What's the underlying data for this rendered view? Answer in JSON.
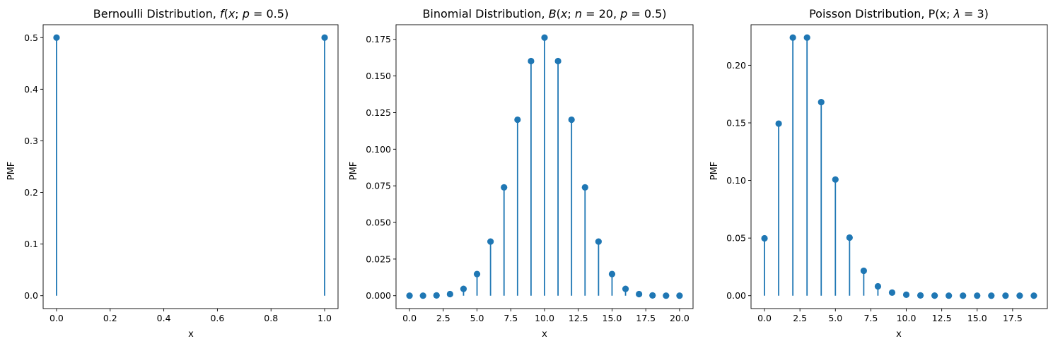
{
  "chart_data": [
    {
      "type": "stem",
      "title": "Bernoulli Distribution, f(x; p = 0.5)",
      "xlabel": "x",
      "ylabel": "PMF",
      "x": [
        0,
        1
      ],
      "values": [
        0.5,
        0.5
      ],
      "xlim": [
        -0.05,
        1.05
      ],
      "ylim": [
        -0.025,
        0.525
      ],
      "xticks": [
        0.0,
        0.2,
        0.4,
        0.6,
        0.8,
        1.0
      ],
      "xtick_labels": [
        "0.0",
        "0.2",
        "0.4",
        "0.6",
        "0.8",
        "1.0"
      ],
      "yticks": [
        0.0,
        0.1,
        0.2,
        0.3,
        0.4,
        0.5
      ],
      "ytick_labels": [
        "0.0",
        "0.1",
        "0.2",
        "0.3",
        "0.4",
        "0.5"
      ],
      "color": "#1f77b4",
      "grid": false
    },
    {
      "type": "stem",
      "title": "Binomial Distribution, B(x; n = 20, p = 0.5)",
      "xlabel": "x",
      "ylabel": "PMF",
      "x": [
        0,
        1,
        2,
        3,
        4,
        5,
        6,
        7,
        8,
        9,
        10,
        11,
        12,
        13,
        14,
        15,
        16,
        17,
        18,
        19,
        20
      ],
      "values": [
        1e-06,
        1.9e-05,
        0.000181,
        0.001087,
        0.004621,
        0.014786,
        0.036964,
        0.073929,
        0.120134,
        0.160179,
        0.176197,
        0.160179,
        0.120134,
        0.073929,
        0.036964,
        0.014786,
        0.004621,
        0.001087,
        0.000181,
        1.9e-05,
        1e-06
      ],
      "xlim": [
        -1.0,
        21.0
      ],
      "ylim": [
        -0.0088,
        0.185
      ],
      "xticks": [
        0.0,
        2.5,
        5.0,
        7.5,
        10.0,
        12.5,
        15.0,
        17.5,
        20.0
      ],
      "xtick_labels": [
        "0.0",
        "2.5",
        "5.0",
        "7.5",
        "10.0",
        "12.5",
        "15.0",
        "17.5",
        "20.0"
      ],
      "yticks": [
        0.0,
        0.025,
        0.05,
        0.075,
        0.1,
        0.125,
        0.15,
        0.175
      ],
      "ytick_labels": [
        "0.000",
        "0.025",
        "0.050",
        "0.075",
        "0.100",
        "0.125",
        "0.150",
        "0.175"
      ],
      "color": "#1f77b4",
      "grid": false
    },
    {
      "type": "stem",
      "title": "Poisson Distribution, P(x; λ = 3)",
      "xlabel": "x",
      "ylabel": "PMF",
      "x": [
        0,
        1,
        2,
        3,
        4,
        5,
        6,
        7,
        8,
        9,
        10,
        11,
        12,
        13,
        14,
        15,
        16,
        17,
        18,
        19
      ],
      "values": [
        0.049787,
        0.149361,
        0.224042,
        0.224042,
        0.168031,
        0.100819,
        0.050409,
        0.021604,
        0.008102,
        0.002701,
        0.00081,
        0.000221,
        5.5e-05,
        1.3e-05,
        3e-06,
        1e-06,
        0.0,
        0.0,
        0.0,
        0.0
      ],
      "xlim": [
        -0.95,
        19.95
      ],
      "ylim": [
        -0.0112,
        0.2352
      ],
      "xticks": [
        0.0,
        2.5,
        5.0,
        7.5,
        10.0,
        12.5,
        15.0,
        17.5
      ],
      "xtick_labels": [
        "0.0",
        "2.5",
        "5.0",
        "7.5",
        "10.0",
        "12.5",
        "15.0",
        "17.5"
      ],
      "yticks": [
        0.0,
        0.05,
        0.1,
        0.15,
        0.2
      ],
      "ytick_labels": [
        "0.00",
        "0.05",
        "0.10",
        "0.15",
        "0.20"
      ],
      "color": "#1f77b4",
      "grid": false
    }
  ]
}
